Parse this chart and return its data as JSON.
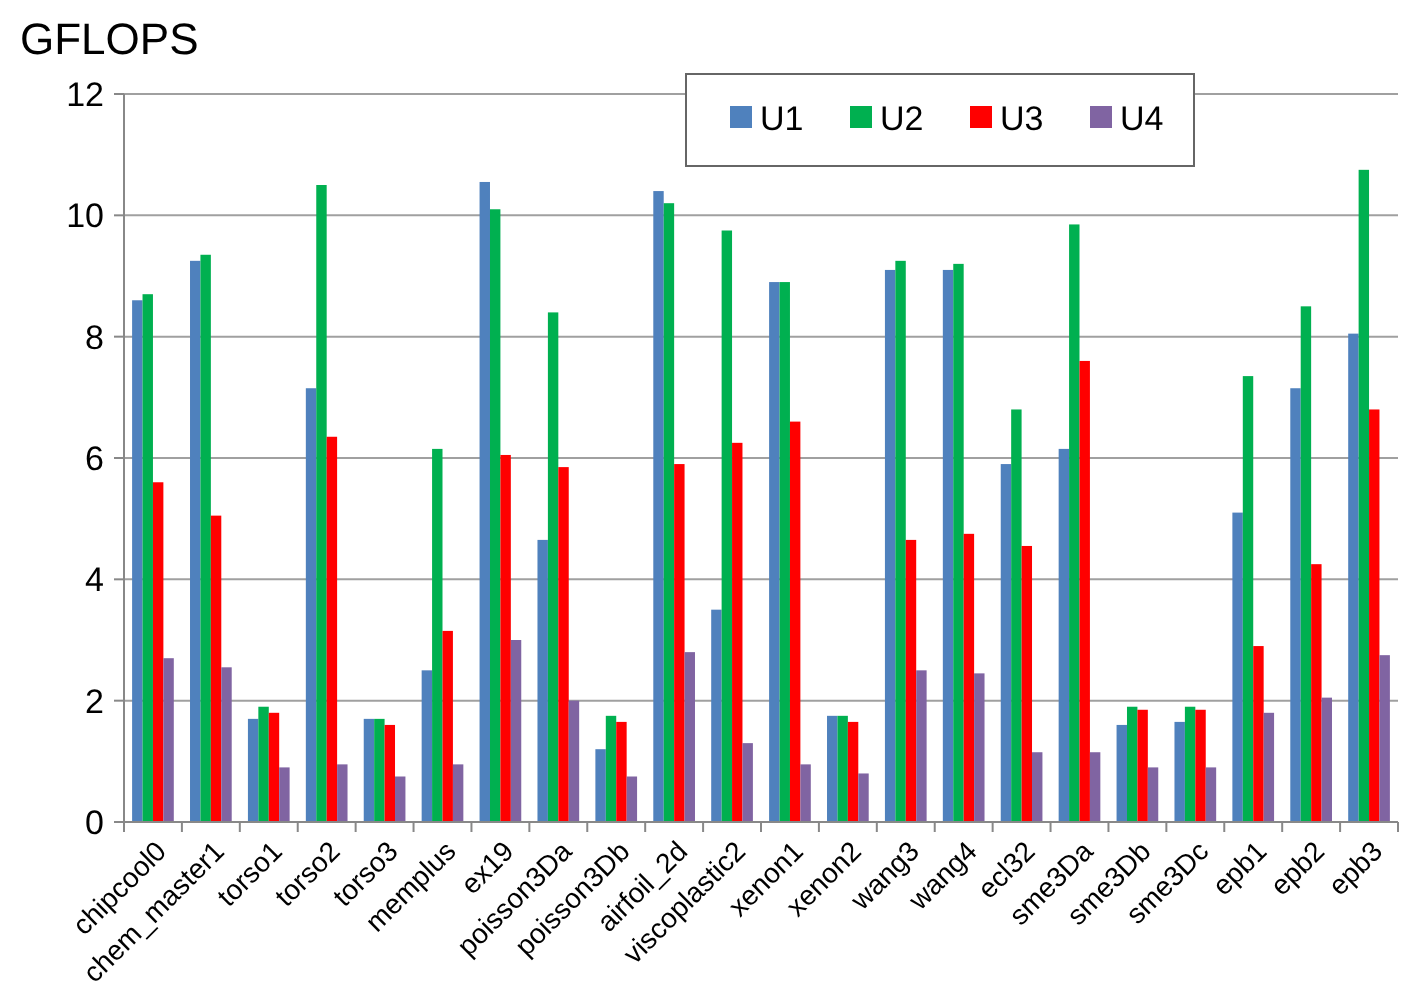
{
  "chart_data": {
    "type": "bar",
    "title": "GFLOPS",
    "categories": [
      "chipcool0",
      "chem_master1",
      "torso1",
      "torso2",
      "torso3",
      "memplus",
      "ex19",
      "poisson3Da",
      "poisson3Db",
      "airfoil_2d",
      "viscoplastic2",
      "xenon1",
      "xenon2",
      "wang3",
      "wang4",
      "ecl32",
      "sme3Da",
      "sme3Db",
      "sme3Dc",
      "epb1",
      "epb2",
      "epb3"
    ],
    "series": [
      {
        "name": "U1",
        "color": "#4f81bd",
        "values": [
          8.6,
          9.25,
          1.7,
          7.15,
          1.7,
          2.5,
          10.55,
          4.65,
          1.2,
          10.4,
          3.5,
          8.9,
          1.75,
          9.1,
          9.1,
          5.9,
          6.15,
          1.6,
          1.65,
          5.1,
          7.15,
          8.05
        ]
      },
      {
        "name": "U2",
        "color": "#00b050",
        "values": [
          8.7,
          9.35,
          1.9,
          10.5,
          1.7,
          6.15,
          10.1,
          8.4,
          1.75,
          10.2,
          9.75,
          8.9,
          1.75,
          9.25,
          9.2,
          6.8,
          9.85,
          1.9,
          1.9,
          7.35,
          8.5,
          10.75
        ]
      },
      {
        "name": "U3",
        "color": "#ff0000",
        "values": [
          5.6,
          5.05,
          1.8,
          6.35,
          1.6,
          3.15,
          6.05,
          5.85,
          1.65,
          5.9,
          6.25,
          6.6,
          1.65,
          4.65,
          4.75,
          4.55,
          7.6,
          1.85,
          1.85,
          2.9,
          4.25,
          6.8
        ]
      },
      {
        "name": "U4",
        "color": "#8064a2",
        "values": [
          2.7,
          2.55,
          0.9,
          0.95,
          0.75,
          0.95,
          3.0,
          2.0,
          0.75,
          2.8,
          1.3,
          0.95,
          0.8,
          2.5,
          2.45,
          1.15,
          1.15,
          0.9,
          0.9,
          1.8,
          2.05,
          2.75
        ]
      }
    ],
    "ylim": [
      0,
      12
    ],
    "yticks": [
      0,
      2,
      4,
      6,
      8,
      10,
      12
    ],
    "grid": "y",
    "legend": "top right"
  }
}
